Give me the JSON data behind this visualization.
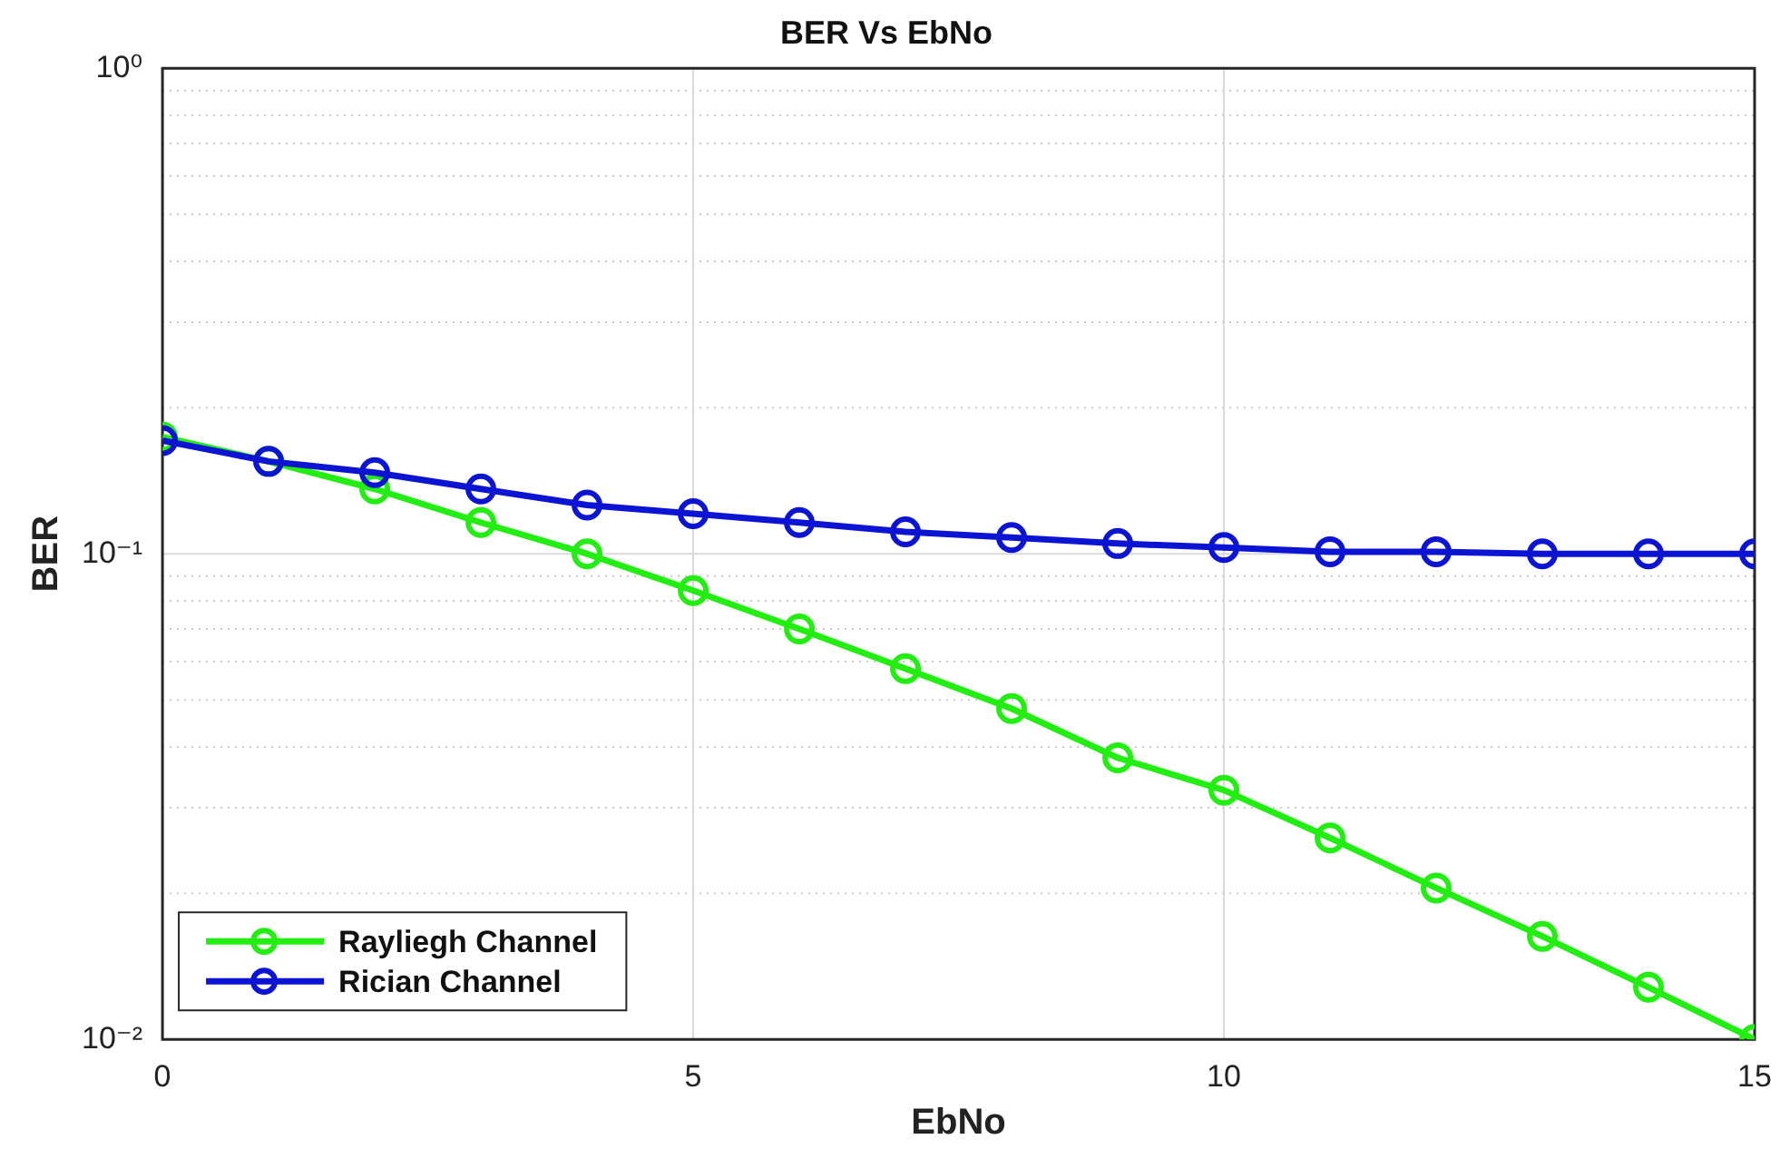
{
  "chart_data": {
    "type": "line",
    "title": "BER Vs EbNo",
    "xlabel": "EbNo",
    "ylabel": "BER",
    "x": [
      0,
      1,
      2,
      3,
      4,
      5,
      6,
      7,
      8,
      9,
      10,
      11,
      12,
      13,
      14,
      15
    ],
    "series": [
      {
        "name": "Rayliegh Channel",
        "color": "#22ee11",
        "values": [
          0.174,
          0.155,
          0.136,
          0.116,
          0.1,
          0.084,
          0.07,
          0.058,
          0.048,
          0.038,
          0.0326,
          0.026,
          0.0205,
          0.0163,
          0.0128,
          0.01
        ]
      },
      {
        "name": "Rician Channel",
        "color": "#0c14d4",
        "values": [
          0.171,
          0.155,
          0.147,
          0.136,
          0.126,
          0.121,
          0.116,
          0.111,
          0.108,
          0.105,
          0.103,
          0.101,
          0.101,
          0.1,
          0.1,
          0.1
        ]
      }
    ],
    "log": "y",
    "xlim": [
      0,
      15
    ],
    "xticks": [
      0,
      5,
      10,
      15
    ],
    "ylim": [
      0.01,
      1
    ],
    "yticks": [
      {
        "value": 0.01,
        "label": "10⁻²"
      },
      {
        "value": 0.02,
        "label": null
      },
      {
        "value": 0.03,
        "label": null
      },
      {
        "value": 0.04,
        "label": null
      },
      {
        "value": 0.05,
        "label": null
      },
      {
        "value": 0.06,
        "label": null
      },
      {
        "value": 0.07,
        "label": null
      },
      {
        "value": 0.08,
        "label": null
      },
      {
        "value": 0.09,
        "label": null
      },
      {
        "value": 0.1,
        "label": "10⁻¹"
      },
      {
        "value": 0.2,
        "label": null
      },
      {
        "value": 0.3,
        "label": null
      },
      {
        "value": 0.4,
        "label": null
      },
      {
        "value": 0.5,
        "label": null
      },
      {
        "value": 0.6,
        "label": null
      },
      {
        "value": 0.7,
        "label": null
      },
      {
        "value": 0.8,
        "label": null
      },
      {
        "value": 0.9,
        "label": null
      },
      {
        "value": 1,
        "label": "10⁰"
      }
    ],
    "grid": true,
    "legend": "bottom left",
    "marker": "circle",
    "line_style": "solid"
  }
}
